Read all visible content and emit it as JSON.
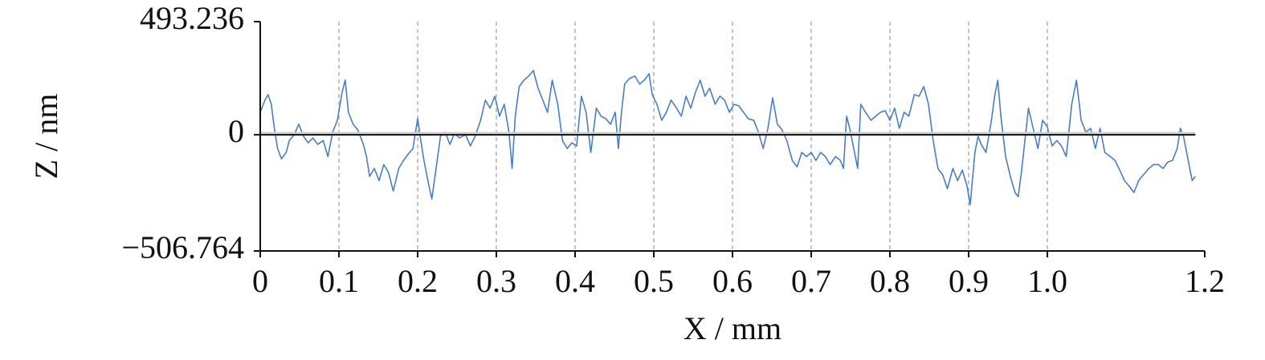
{
  "chart_data": {
    "type": "line",
    "xlabel": "X / mm",
    "ylabel": "Z / nm",
    "xlim": [
      0,
      1.2
    ],
    "ylim": [
      -506.764,
      493.236
    ],
    "xticks": [
      0,
      0.1,
      0.2,
      0.3,
      0.4,
      0.5,
      0.6,
      0.7,
      0.8,
      0.9,
      {
        "value": 1,
        "label": "1.0"
      },
      1.2
    ],
    "yticks": [
      {
        "value": -506.764,
        "label": "−506.764"
      },
      0,
      493.236
    ],
    "grid": true,
    "series": [
      {
        "color": "#4a7ec2",
        "x": [
          0,
          0.006,
          0.01,
          0.014,
          0.018,
          0.022,
          0.027,
          0.033,
          0.037,
          0.043,
          0.049,
          0.055,
          0.061,
          0.067,
          0.073,
          0.08,
          0.086,
          0.092,
          0.098,
          0.104,
          0.108,
          0.112,
          0.118,
          0.124,
          0.131,
          0.135,
          0.139,
          0.145,
          0.151,
          0.157,
          0.163,
          0.169,
          0.176,
          0.182,
          0.188,
          0.194,
          0.2,
          0.204,
          0.208,
          0.214,
          0.218,
          0.222,
          0.229,
          0.235,
          0.241,
          0.247,
          0.253,
          0.261,
          0.267,
          0.273,
          0.28,
          0.286,
          0.292,
          0.298,
          0.304,
          0.31,
          0.316,
          0.32,
          0.324,
          0.329,
          0.335,
          0.341,
          0.347,
          0.353,
          0.359,
          0.365,
          0.371,
          0.378,
          0.384,
          0.39,
          0.396,
          0.402,
          0.408,
          0.414,
          0.42,
          0.427,
          0.433,
          0.439,
          0.445,
          0.451,
          0.455,
          0.459,
          0.463,
          0.469,
          0.476,
          0.482,
          0.488,
          0.494,
          0.498,
          0.504,
          0.51,
          0.516,
          0.522,
          0.529,
          0.535,
          0.541,
          0.547,
          0.553,
          0.559,
          0.565,
          0.571,
          0.578,
          0.584,
          0.59,
          0.596,
          0.602,
          0.608,
          0.614,
          0.62,
          0.627,
          0.633,
          0.639,
          0.645,
          0.651,
          0.657,
          0.663,
          0.669,
          0.676,
          0.682,
          0.688,
          0.694,
          0.7,
          0.706,
          0.712,
          0.718,
          0.724,
          0.731,
          0.737,
          0.741,
          0.745,
          0.749,
          0.755,
          0.759,
          0.763,
          0.769,
          0.776,
          0.782,
          0.788,
          0.794,
          0.8,
          0.806,
          0.812,
          0.818,
          0.824,
          0.831,
          0.837,
          0.843,
          0.849,
          0.855,
          0.861,
          0.867,
          0.873,
          0.88,
          0.886,
          0.892,
          0.898,
          0.902,
          0.908,
          0.912,
          0.916,
          0.922,
          0.929,
          0.933,
          0.937,
          0.941,
          0.947,
          0.953,
          0.959,
          0.963,
          0.967,
          0.971,
          0.976,
          0.982,
          0.988,
          0.994,
          1.0,
          1.006,
          1.012,
          1.018,
          1.024,
          1.031,
          1.037,
          1.043,
          1.049,
          1.055,
          1.061,
          1.067,
          1.073,
          1.08,
          1.086,
          1.092,
          1.098,
          1.104,
          1.11,
          1.116,
          1.122,
          1.129,
          1.135,
          1.141,
          1.147,
          1.153,
          1.159,
          1.165,
          1.169,
          1.173,
          1.18,
          1.184,
          1.188
        ],
        "values": [
          98,
          151,
          175,
          133,
          28,
          -60,
          -105,
          -77,
          -25,
          0,
          46,
          -7,
          -35,
          -14,
          -42,
          -25,
          -95,
          11,
          63,
          186,
          238,
          98,
          46,
          21,
          -42,
          -95,
          -182,
          -147,
          -200,
          -130,
          -165,
          -245,
          -147,
          -112,
          -84,
          -60,
          70,
          -25,
          -112,
          -217,
          -280,
          -182,
          -7,
          11,
          -42,
          7,
          -14,
          0,
          -49,
          -7,
          63,
          151,
          116,
          168,
          81,
          133,
          11,
          -147,
          81,
          210,
          238,
          256,
          280,
          203,
          151,
          98,
          238,
          133,
          -25,
          -60,
          -35,
          -49,
          168,
          98,
          -77,
          116,
          81,
          70,
          46,
          98,
          -60,
          98,
          221,
          245,
          256,
          221,
          238,
          266,
          175,
          133,
          63,
          98,
          151,
          116,
          81,
          168,
          116,
          186,
          238,
          168,
          203,
          133,
          168,
          151,
          98,
          133,
          126,
          98,
          70,
          63,
          11,
          -60,
          28,
          161,
          46,
          21,
          -25,
          -112,
          -140,
          -77,
          -95,
          -77,
          -112,
          -77,
          -95,
          -130,
          -95,
          -112,
          -147,
          81,
          28,
          -77,
          -147,
          133,
          98,
          63,
          81,
          98,
          105,
          63,
          116,
          28,
          98,
          81,
          175,
          168,
          210,
          133,
          -25,
          -147,
          -175,
          -235,
          -147,
          -200,
          -154,
          -224,
          -305,
          -77,
          -7,
          -42,
          -77,
          63,
          168,
          238,
          81,
          -95,
          -182,
          -252,
          -270,
          -165,
          -42,
          116,
          28,
          -60,
          63,
          35,
          -49,
          -25,
          -49,
          -95,
          133,
          238,
          63,
          11,
          28,
          -60,
          28,
          -77,
          -95,
          -112,
          -154,
          -200,
          -224,
          -252,
          -200,
          -175,
          -147,
          -130,
          -130,
          -147,
          -119,
          -112,
          -60,
          28,
          -7,
          -130,
          -200,
          -182
        ]
      }
    ]
  }
}
